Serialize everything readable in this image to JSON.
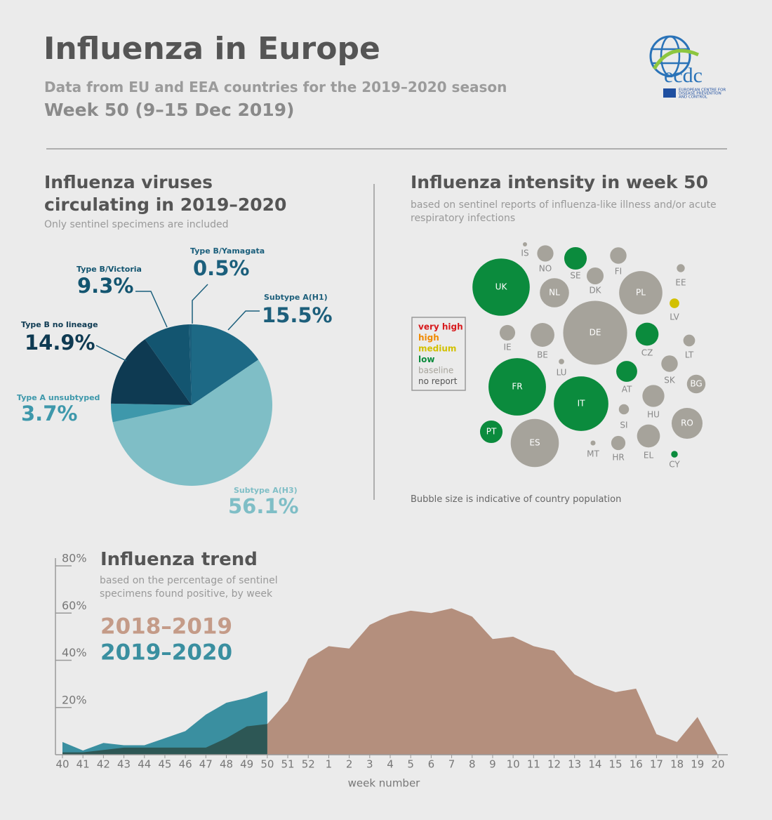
{
  "header": {
    "title": "Influenza in Europe",
    "subtitle": "Data from EU and EEA countries for the 2019–2020 season",
    "week": "Week 50 (9–15 Dec 2019)"
  },
  "logo": {
    "name": "ecdc",
    "lines": [
      "EUROPEAN CENTRE FOR",
      "DISEASE PREVENTION",
      "AND CONTROL"
    ]
  },
  "chart_data": [
    {
      "type": "pie",
      "title": "Influenza viruses circulating in 2019–2020",
      "subtitle": "Only sentinel specimens are included",
      "categories": [
        "Subtype A(H1)",
        "Subtype A(H3)",
        "Type A unsubtyped",
        "Type B no lineage",
        "Type B/Victoria",
        "Type B/Yamagata"
      ],
      "values": [
        15.5,
        56.1,
        3.7,
        14.9,
        9.3,
        0.5
      ],
      "value_labels": [
        "15.5%",
        "56.1%",
        "3.7%",
        "14.9%",
        "9.3%",
        "0.5%"
      ],
      "colors": [
        "#1d6985",
        "#7fbec6",
        "#3e98ab",
        "#0e3a52",
        "#135570",
        "#1b5f7c"
      ]
    },
    {
      "type": "bubble",
      "title": "Influenza intensity in week 50",
      "subtitle": "based on sentinel reports of influenza-like illness and/or acute respiratory infections",
      "note": "Bubble size is indicative of country population",
      "series": [
        {
          "name": "very high",
          "color": "#d7191c",
          "categories": [],
          "values": []
        },
        {
          "name": "high",
          "color": "#f08a00",
          "categories": [],
          "values": []
        },
        {
          "name": "medium",
          "color": "#d2c000",
          "categories": [
            "LV"
          ],
          "values": [
            1.9
          ]
        },
        {
          "name": "low",
          "color": "#0b8b3d",
          "categories": [
            "SE",
            "UK",
            "CZ",
            "FR",
            "IT",
            "AT",
            "PT",
            "CY"
          ],
          "values": [
            10.3,
            66.6,
            10.7,
            67,
            60.4,
            8.9,
            10.3,
            0.9
          ]
        },
        {
          "name": "baseline",
          "color": "#a6a39b",
          "categories": [
            "IS",
            "NO",
            "FI",
            "DK",
            "NL",
            "PL",
            "EE",
            "DE",
            "IE",
            "BE",
            "LT",
            "LU",
            "SK",
            "BG",
            "HU",
            "SI",
            "RO",
            "ES",
            "MT",
            "HR",
            "EL"
          ],
          "values": [
            0.36,
            5.4,
            5.5,
            5.8,
            17.3,
            38,
            1.3,
            83,
            4.9,
            11.5,
            2.8,
            0.6,
            5.5,
            7,
            9.8,
            2.1,
            19.4,
            47,
            0.5,
            4.1,
            10.7
          ]
        },
        {
          "name": "no report",
          "color": "#555555",
          "categories": [],
          "values": []
        }
      ]
    },
    {
      "type": "area",
      "title": "Influenza trend",
      "subtitle": "based on the percentage of sentinel specimens found positive, by week",
      "x_label": "week number",
      "categories": [
        "40",
        "41",
        "42",
        "43",
        "44",
        "45",
        "46",
        "47",
        "48",
        "49",
        "50",
        "51",
        "52",
        "1",
        "2",
        "3",
        "4",
        "5",
        "6",
        "7",
        "8",
        "9",
        "10",
        "11",
        "12",
        "13",
        "14",
        "15",
        "16",
        "17",
        "18",
        "19",
        "20"
      ],
      "series": [
        {
          "name": "2019–2020",
          "color": "#3a8fa0",
          "values": [
            5.4,
            1.8,
            5,
            4,
            4,
            7,
            10,
            17,
            22,
            24,
            27,
            null,
            null,
            null,
            null,
            null,
            null,
            null,
            null,
            null,
            null,
            null,
            null,
            null,
            null,
            null,
            null,
            null,
            null,
            null,
            null,
            null,
            null
          ]
        },
        {
          "name": "2018–2019",
          "color": "#c49b88",
          "values": [
            1,
            1,
            2,
            3,
            3,
            3,
            3,
            3,
            7,
            12,
            13,
            22.7,
            40.6,
            46,
            45,
            55,
            59,
            61,
            60,
            62,
            58.5,
            49,
            50,
            46,
            44,
            34,
            29.5,
            26.5,
            28,
            8.7,
            5.4,
            16,
            0
          ]
        }
      ],
      "ylim": [
        0,
        80
      ],
      "yticks": [
        {
          "value": 20,
          "label": "20%"
        },
        {
          "value": 40,
          "label": "40%"
        },
        {
          "value": 60,
          "label": "60%"
        },
        {
          "value": 80,
          "label": "80%"
        }
      ]
    }
  ]
}
